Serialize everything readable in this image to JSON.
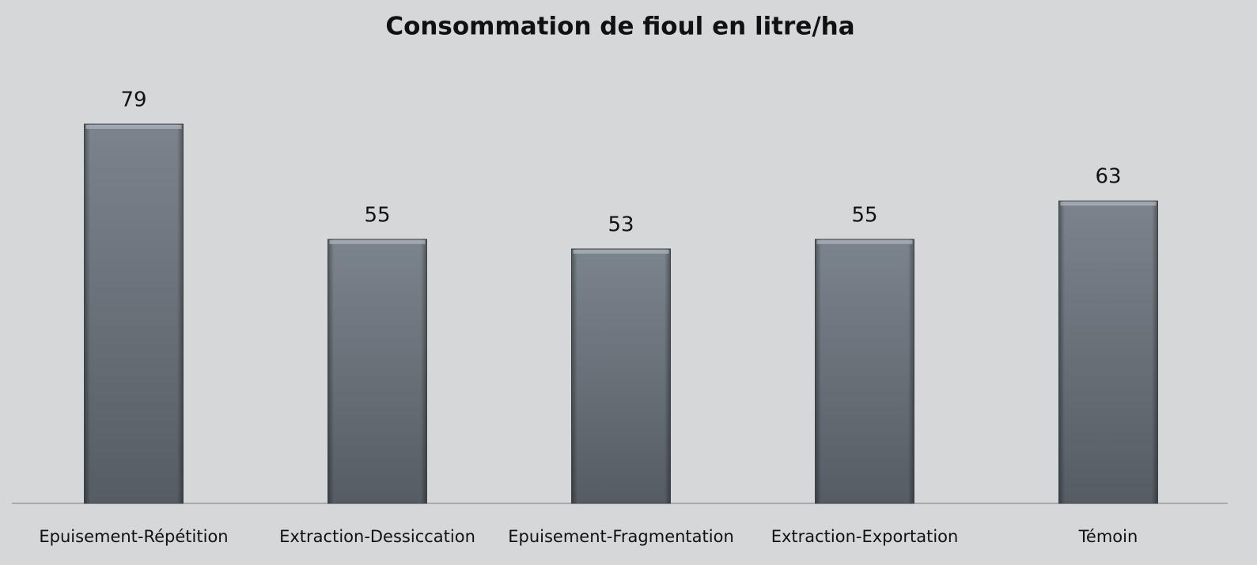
{
  "chart_data": {
    "type": "bar",
    "title": "Consommation de fioul en litre/ha",
    "categories": [
      "Epuisement-Répétition",
      "Extraction-Dessiccation",
      "Epuisement-Fragmentation",
      "Extraction-Exportation",
      "Témoin"
    ],
    "values": [
      79,
      55,
      53,
      55,
      63
    ],
    "color": "#6a737b"
  }
}
